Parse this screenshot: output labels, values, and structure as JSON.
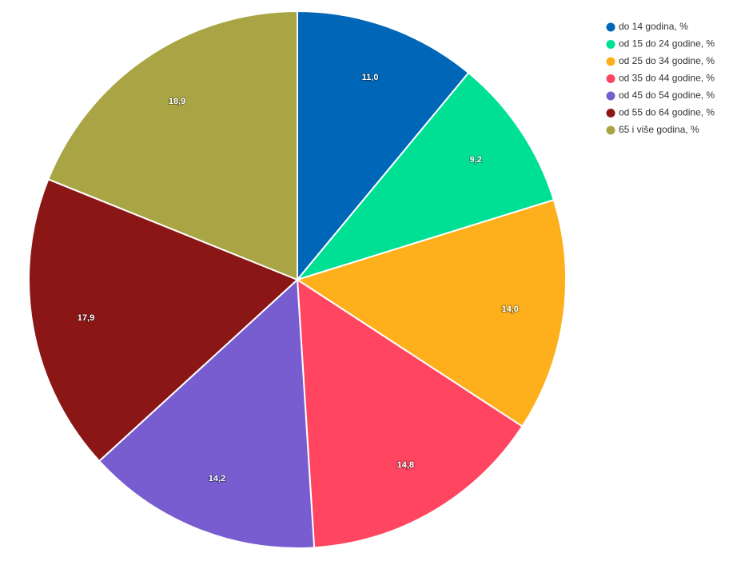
{
  "chart_data": {
    "type": "pie",
    "categories": [
      "do 14 godina, %",
      "od 15 do 24 godine, %",
      "od 25 do 34 godine, %",
      "od 35 do 44 godine, %",
      "od 45 do 54 godine, %",
      "od 55 do 64 godine, %",
      "65 i više godina, %"
    ],
    "values": [
      11.0,
      9.2,
      14.0,
      14.8,
      14.2,
      17.9,
      18.9
    ],
    "value_labels": [
      "11,0",
      "9,2",
      "14,0",
      "14,8",
      "14,2",
      "17,9",
      "18,9"
    ],
    "colors": [
      "#0066b8",
      "#00e095",
      "#fdb01b",
      "#ff4560",
      "#775dd0",
      "#8b1616",
      "#a9a544"
    ],
    "legend": "top-right"
  }
}
